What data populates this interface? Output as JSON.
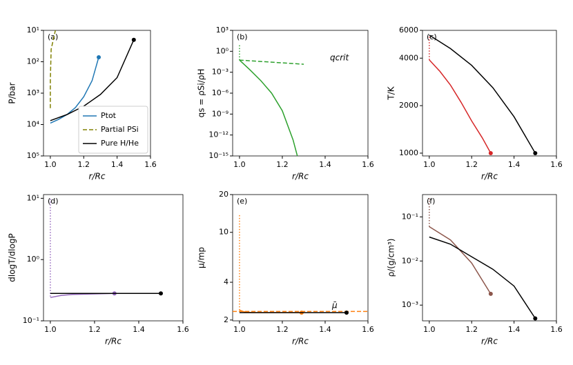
{
  "chart_data": [
    {
      "type": "line",
      "label": "(a)",
      "xlabel": "r/Rc",
      "ylabel": "P/bar",
      "yscale": "log",
      "legend": "lower right",
      "xlim": [
        0.959,
        1.6
      ],
      "xticks": [
        {
          "value": 1.0,
          "label": "1.0"
        },
        1.2,
        1.4,
        {
          "value": 1.6,
          "label": "1.6"
        }
      ],
      "ylim": [
        100000,
        10
      ],
      "yticks": [
        {
          "value": 10,
          "label": "10¹"
        },
        {
          "value": 100,
          "label": "10²"
        },
        {
          "value": 1000,
          "label": "10³"
        },
        {
          "value": 10000,
          "label": "10⁴"
        },
        {
          "value": 100000,
          "label": "10⁵"
        }
      ],
      "series": [
        {
          "name": "Ptot",
          "color": "#1f77b4",
          "linestyle": "solid",
          "end_marker": true,
          "x": [
            1.0,
            1.05,
            1.1,
            1.15,
            1.2,
            1.25,
            1.29
          ],
          "values": [
            9000,
            6800,
            4800,
            2900,
            1300,
            400,
            72
          ]
        },
        {
          "name": "Partial PSi",
          "color": "#808000",
          "linestyle": "dashed",
          "x": [
            1.0,
            1.0,
            1.005,
            1.03
          ],
          "values": [
            3000,
            400,
            40,
            10
          ]
        },
        {
          "name": "Pure H/He",
          "color": "#000000",
          "linestyle": "solid",
          "end_marker": true,
          "x": [
            1.0,
            1.1,
            1.2,
            1.3,
            1.4,
            1.5
          ],
          "values": [
            7500,
            4800,
            2600,
            1100,
            320,
            20
          ]
        }
      ]
    },
    {
      "type": "line",
      "label": "(b)",
      "xlabel": "r/Rc",
      "ylabel": "qs = ρSi/ρH",
      "yscale": "log",
      "annotations": [
        {
          "text": "qcrit",
          "color": "#2ca02c"
        }
      ],
      "xlim": [
        0.968,
        1.6
      ],
      "xticks": [
        {
          "value": 1.0,
          "label": "1.0"
        },
        1.2,
        1.4,
        {
          "value": 1.6,
          "label": "1.6"
        }
      ],
      "ylim": [
        1e-15,
        1000
      ],
      "yticks": [
        {
          "value": 1000,
          "label": "10³"
        },
        {
          "value": 1,
          "label": "10⁰"
        },
        {
          "value": 0.001,
          "label": "10⁻³"
        },
        {
          "value": 1e-06,
          "label": "10⁻⁶"
        },
        {
          "value": 1e-09,
          "label": "10⁻⁹"
        },
        {
          "value": 1e-12,
          "label": "10⁻¹²"
        },
        {
          "value": 1e-15,
          "label": "10⁻¹⁵"
        }
      ],
      "series": [
        {
          "color": "#2ca02c",
          "linestyle": "solid",
          "x": [
            1.0,
            1.05,
            1.1,
            1.15,
            1.2,
            1.25,
            1.27
          ],
          "values": [
            0.055,
            0.002,
            6e-05,
            1e-06,
            3e-09,
            2e-13,
            1e-15
          ]
        },
        {
          "color": "#2ca02c",
          "linestyle": "dashed",
          "x": [
            1.0,
            1.3
          ],
          "values": [
            0.055,
            0.014
          ]
        },
        {
          "color": "#2ca02c",
          "linestyle": "dotted",
          "x": [
            1.0,
            1.0
          ],
          "values": [
            0.055,
            8
          ]
        }
      ]
    },
    {
      "type": "line",
      "label": "(c)",
      "xlabel": "r/Rc",
      "ylabel": "T/K",
      "yscale": "log",
      "xlim": [
        0.968,
        1.6
      ],
      "xticks": [
        {
          "value": 1.0,
          "label": "1.0"
        },
        1.2,
        1.4,
        {
          "value": 1.6,
          "label": "1.6"
        }
      ],
      "ylim": [
        960,
        6000
      ],
      "yticks": [
        1000,
        2000,
        4000,
        6000
      ],
      "series": [
        {
          "color": "#d62728",
          "linestyle": "solid",
          "end_marker": true,
          "x": [
            1.0,
            1.05,
            1.1,
            1.15,
            1.2,
            1.25,
            1.29
          ],
          "values": [
            3900,
            3300,
            2700,
            2100,
            1600,
            1250,
            1000
          ]
        },
        {
          "color": "#d62728",
          "linestyle": "dotted",
          "x": [
            1.0,
            1.0
          ],
          "values": [
            3900,
            5500
          ]
        },
        {
          "color": "#000000",
          "linestyle": "solid",
          "end_marker": true,
          "x": [
            1.0,
            1.1,
            1.2,
            1.3,
            1.4,
            1.5
          ],
          "values": [
            5600,
            4600,
            3600,
            2600,
            1700,
            1000
          ]
        }
      ]
    },
    {
      "type": "line",
      "label": "(d)",
      "xlabel": "r/Rc",
      "ylabel": "dlogT/dlogP",
      "yscale": "log",
      "xlim": [
        0.969,
        1.6
      ],
      "xticks": [
        {
          "value": 1.0,
          "label": "1.0"
        },
        1.2,
        1.4,
        {
          "value": 1.6,
          "label": "1.6"
        }
      ],
      "ylim": [
        0.1,
        11.5
      ],
      "yticks": [
        {
          "value": 10,
          "label": "10¹"
        },
        {
          "value": 1,
          "label": "10⁰"
        },
        {
          "value": 0.1,
          "label": "10⁻¹"
        }
      ],
      "series": [
        {
          "color": "#9467bd",
          "linestyle": "solid",
          "end_marker": true,
          "x": [
            1.0,
            1.05,
            1.1,
            1.2,
            1.29
          ],
          "values": [
            0.24,
            0.26,
            0.27,
            0.275,
            0.28
          ]
        },
        {
          "color": "#9467bd",
          "linestyle": "dotted",
          "x": [
            1.0,
            1.0
          ],
          "values": [
            0.25,
            10
          ]
        },
        {
          "color": "#000000",
          "linestyle": "solid",
          "end_marker": true,
          "x": [
            1.0,
            1.5
          ],
          "values": [
            0.28,
            0.28
          ]
        }
      ]
    },
    {
      "type": "line",
      "label": "(e)",
      "xlabel": "r/Rc",
      "ylabel": "μ/mp",
      "yscale": "log",
      "annotations": [
        {
          "text": "μ̄",
          "color": "#ff7f0e"
        }
      ],
      "xlim": [
        0.968,
        1.6
      ],
      "xticks": [
        {
          "value": 1.0,
          "label": "1.0"
        },
        1.2,
        1.4,
        {
          "value": 1.6,
          "label": "1.6"
        }
      ],
      "ylim": [
        1.97,
        20
      ],
      "yticks": [
        2,
        4,
        10,
        20
      ],
      "series": [
        {
          "color": "#ff7f0e",
          "linestyle": "dotted",
          "x": [
            1.0,
            1.0
          ],
          "values": [
            2.4,
            14
          ]
        },
        {
          "color": "#ff7f0e",
          "linestyle": "dashed",
          "x": [
            0.968,
            1.6
          ],
          "values": [
            2.34,
            2.34
          ]
        },
        {
          "color": "#ff7f0e",
          "linestyle": "solid",
          "end_marker": true,
          "x": [
            1.0,
            1.02,
            1.06,
            1.29
          ],
          "values": [
            2.4,
            2.33,
            2.29,
            2.29
          ]
        },
        {
          "color": "#000000",
          "linestyle": "solid",
          "end_marker": true,
          "x": [
            1.0,
            1.5
          ],
          "values": [
            2.29,
            2.29
          ]
        }
      ]
    },
    {
      "type": "line",
      "label": "(f)",
      "xlabel": "r/Rc",
      "ylabel": "ρ/(g/cm³)",
      "yscale": "log",
      "xlim": [
        0.968,
        1.6
      ],
      "xticks": [
        {
          "value": 1.0,
          "label": "1.0"
        },
        1.2,
        1.4,
        {
          "value": 1.6,
          "label": "1.6"
        }
      ],
      "ylim": [
        0.00044,
        0.32
      ],
      "yticks": [
        {
          "value": 0.1,
          "label": "10⁻¹"
        },
        {
          "value": 0.01,
          "label": "10⁻²"
        },
        {
          "value": 0.001,
          "label": "10⁻³"
        }
      ],
      "series": [
        {
          "color": "#8c564b",
          "linestyle": "dotted",
          "x": [
            1.0,
            1.0
          ],
          "values": [
            0.06,
            0.28
          ]
        },
        {
          "color": "#8c564b",
          "linestyle": "solid",
          "end_marker": true,
          "x": [
            1.0,
            1.1,
            1.2,
            1.29
          ],
          "values": [
            0.06,
            0.03,
            0.009,
            0.0018
          ]
        },
        {
          "color": "#000000",
          "linestyle": "solid",
          "end_marker": true,
          "x": [
            1.0,
            1.1,
            1.2,
            1.3,
            1.4,
            1.5
          ],
          "values": [
            0.035,
            0.024,
            0.0125,
            0.0065,
            0.0027,
            0.0005
          ]
        }
      ]
    }
  ]
}
